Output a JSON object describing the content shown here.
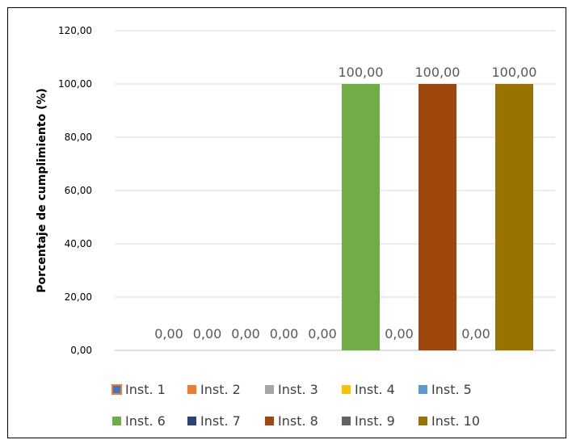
{
  "chart_data": {
    "type": "bar",
    "title": "",
    "ylabel": "Porcentaje de cumplimiento (%)",
    "xlabel": "",
    "ylim": [
      0,
      120
    ],
    "yticks": [
      0,
      20,
      40,
      60,
      80,
      100,
      120
    ],
    "ytick_labels": [
      "0,00",
      "20,00",
      "40,00",
      "60,00",
      "80,00",
      "100,00",
      "120,00"
    ],
    "grid": true,
    "legend_position": "bottom",
    "series": [
      {
        "name": "Inst. 1",
        "value": 0,
        "label": "0,00",
        "color": "#4472C4",
        "legend_border": "#ED7D31"
      },
      {
        "name": "Inst. 2",
        "value": 0,
        "label": "0,00",
        "color": "#ED7D31"
      },
      {
        "name": "Inst. 3",
        "value": 0,
        "label": "0,00",
        "color": "#A5A5A5"
      },
      {
        "name": "Inst. 4",
        "value": 0,
        "label": "0,00",
        "color": "#FFC000"
      },
      {
        "name": "Inst. 5",
        "value": 0,
        "label": "0,00",
        "color": "#5B9BD5"
      },
      {
        "name": "Inst. 6",
        "value": 100,
        "label": "100,00",
        "color": "#70AD47"
      },
      {
        "name": "Inst. 7",
        "value": 0,
        "label": "0,00",
        "color": "#264478"
      },
      {
        "name": "Inst. 8",
        "value": 100,
        "label": "100,00",
        "color": "#9E480E"
      },
      {
        "name": "Inst. 9",
        "value": 0,
        "label": "0,00",
        "color": "#636363"
      },
      {
        "name": "Inst. 10",
        "value": 100,
        "label": "100,00",
        "color": "#997300"
      }
    ]
  }
}
